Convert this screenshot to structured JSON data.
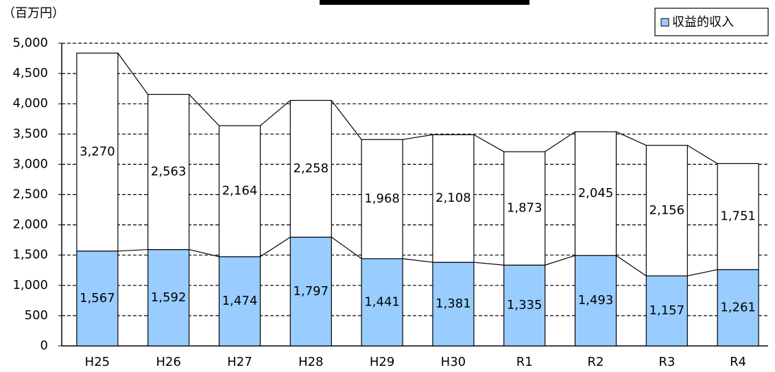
{
  "chart_data": {
    "type": "stacked-bar",
    "y_label": "（百万円）",
    "categories": [
      "H25",
      "H26",
      "H27",
      "H28",
      "H29",
      "H30",
      "R1",
      "R2",
      "R3",
      "R4"
    ],
    "series": [
      {
        "name": "収益的収入",
        "color": "#99ccff",
        "values": [
          1567,
          1592,
          1474,
          1797,
          1441,
          1381,
          1335,
          1493,
          1157,
          1261
        ],
        "value_labels": [
          "1,567",
          "1,592",
          "1,474",
          "1,797",
          "1,441",
          "1,381",
          "1,335",
          "1,493",
          "1,157",
          "1,261"
        ]
      },
      {
        "color": "#ffffff",
        "values": [
          3270,
          2563,
          2164,
          2258,
          1968,
          2108,
          1873,
          2045,
          2156,
          1751
        ],
        "value_labels": [
          "3,270",
          "2,563",
          "2,164",
          "2,258",
          "1,968",
          "2,108",
          "1,873",
          "2,045",
          "2,156",
          "1,751"
        ]
      }
    ],
    "ylim": [
      0,
      5000
    ],
    "yticks": [
      0,
      500,
      {
        "value": 1000,
        "label": "1,000"
      },
      {
        "value": 1500,
        "label": "1,500"
      },
      {
        "value": 2000,
        "label": "2,000"
      },
      {
        "value": 2500,
        "label": "2,500"
      },
      {
        "value": 3000,
        "label": "3,000"
      },
      {
        "value": 3500,
        "label": "3,500"
      },
      {
        "value": 4000,
        "label": "4,000"
      },
      {
        "value": 4500,
        "label": "4,500"
      },
      {
        "value": 5000,
        "label": "5,000"
      }
    ],
    "grid": true,
    "legend": "upper right"
  }
}
